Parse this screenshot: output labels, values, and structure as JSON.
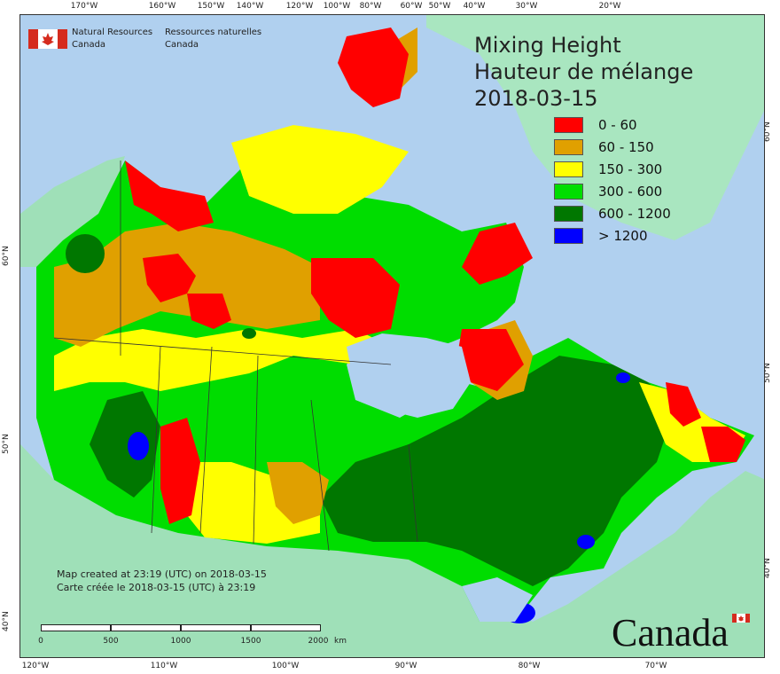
{
  "map": {
    "title": [
      "Mixing Height",
      "Hauteur de mélange",
      "2018-03-15"
    ],
    "legend": [
      {
        "label": "0 - 60",
        "color": "#ff0000"
      },
      {
        "label": "60 - 150",
        "color": "#e0a000"
      },
      {
        "label": "150 - 300",
        "color": "#ffff00"
      },
      {
        "label": "300 - 600",
        "color": "#00dd00"
      },
      {
        "label": "600 - 1200",
        "color": "#007700"
      },
      {
        "label": "> 1200",
        "color": "#0000ff"
      }
    ],
    "agency": {
      "en_line1": "Natural Resources",
      "en_line2": "Canada",
      "fr_line1": "Ressources naturelles",
      "fr_line2": "Canada"
    },
    "credit": {
      "line1": "Map created at 23:19 (UTC) on 2018-03-15",
      "line2": "Carte créée le 2018-03-15 (UTC) à 23:19"
    },
    "scale": {
      "labels": [
        "0",
        "500",
        "1000",
        "1500",
        "2000",
        "km"
      ]
    },
    "wordmark": "Canada",
    "top_ticks": [
      "170°W",
      "160°W",
      "150°W",
      "140°W",
      "120°W",
      "100°W",
      "80°W",
      "60°W",
      "50°W",
      "40°W",
      "30°W",
      "20°W"
    ],
    "bottom_ticks": [
      "120°W",
      "110°W",
      "100°W",
      "90°W",
      "80°W",
      "70°W"
    ],
    "left_ticks": [
      "60°N",
      "50°N",
      "40°N"
    ],
    "right_ticks": [
      "60°N",
      "50°N",
      "40°N"
    ],
    "colors": {
      "water": "#b0d0ef",
      "land_outside": "#9fe0b8",
      "greenland": "#a9e6c0"
    }
  }
}
